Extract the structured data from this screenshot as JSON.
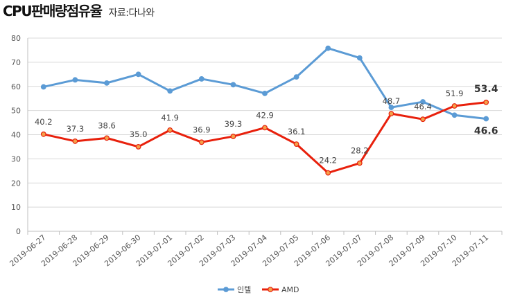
{
  "header": {
    "title": "CPU판매량점유율",
    "source": "자료:다나와"
  },
  "colors": {
    "intel": "#5b9bd5",
    "amd": "#e8200c",
    "grid": "#d9d9d9",
    "axis": "#bfbfbf"
  },
  "chart_data": {
    "type": "line",
    "title": "CPU판매량점유율",
    "xlabel": "",
    "ylabel": "",
    "ylim": [
      0,
      80
    ],
    "yticks": [
      0,
      10,
      20,
      30,
      40,
      50,
      60,
      70,
      80
    ],
    "grid": true,
    "legend_position": "bottom",
    "categories": [
      "2019-06-27",
      "2019-06-28",
      "2019-06-29",
      "2019-06-30",
      "2019-07-01",
      "2019-07-02",
      "2019-07-03",
      "2019-07-04",
      "2019-07-05",
      "2019-07-06",
      "2019-07-07",
      "2019-07-08",
      "2019-07-09",
      "2019-07-10",
      "2019-07-11"
    ],
    "series": [
      {
        "name": "인텔",
        "values": [
          59.8,
          62.7,
          61.4,
          65.0,
          58.1,
          63.1,
          60.7,
          57.1,
          63.9,
          75.8,
          71.8,
          51.3,
          53.6,
          48.1,
          46.6
        ],
        "labels": [
          null,
          null,
          null,
          null,
          null,
          null,
          null,
          null,
          null,
          null,
          null,
          null,
          null,
          null,
          "46.6"
        ]
      },
      {
        "name": "AMD",
        "values": [
          40.2,
          37.3,
          38.6,
          35.0,
          41.9,
          36.9,
          39.3,
          42.9,
          36.1,
          24.2,
          28.2,
          48.7,
          46.4,
          51.9,
          53.4
        ],
        "labels": [
          "40.2",
          "37.3",
          "38.6",
          "35.0",
          "41.9",
          "36.9",
          "39.3",
          "42.9",
          "36.1",
          "24.2",
          "28.2",
          "48.7",
          "46.4",
          "51.9",
          "53.4"
        ]
      }
    ]
  }
}
